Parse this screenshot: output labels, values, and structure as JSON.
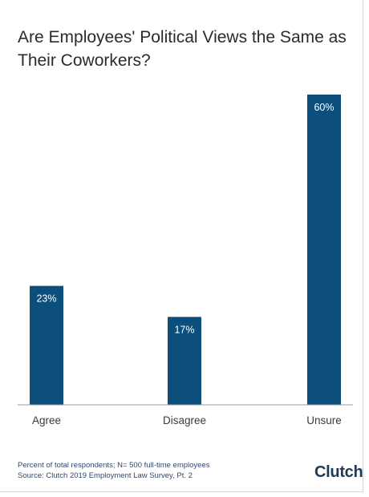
{
  "title": "Are Employees' Political Views the Same as Their Coworkers?",
  "chart_data": {
    "type": "bar",
    "categories": [
      "Agree",
      "Disagree",
      "Unsure"
    ],
    "values": [
      23,
      17,
      60
    ],
    "data_labels": [
      "23%",
      "17%",
      "60%"
    ],
    "title": "Are Employees' Political Views the Same as Their Coworkers?",
    "xlabel": "",
    "ylabel": "",
    "ylim": [
      0,
      60
    ],
    "grid": false,
    "bar_color": "#0c4f7c"
  },
  "footer": {
    "note": "Percent of total respondents; N= 500 full-time employees",
    "source": "Source: Clutch 2019 Employment Law Survey, Pt. 2"
  },
  "logo": {
    "text": "Clutch"
  }
}
